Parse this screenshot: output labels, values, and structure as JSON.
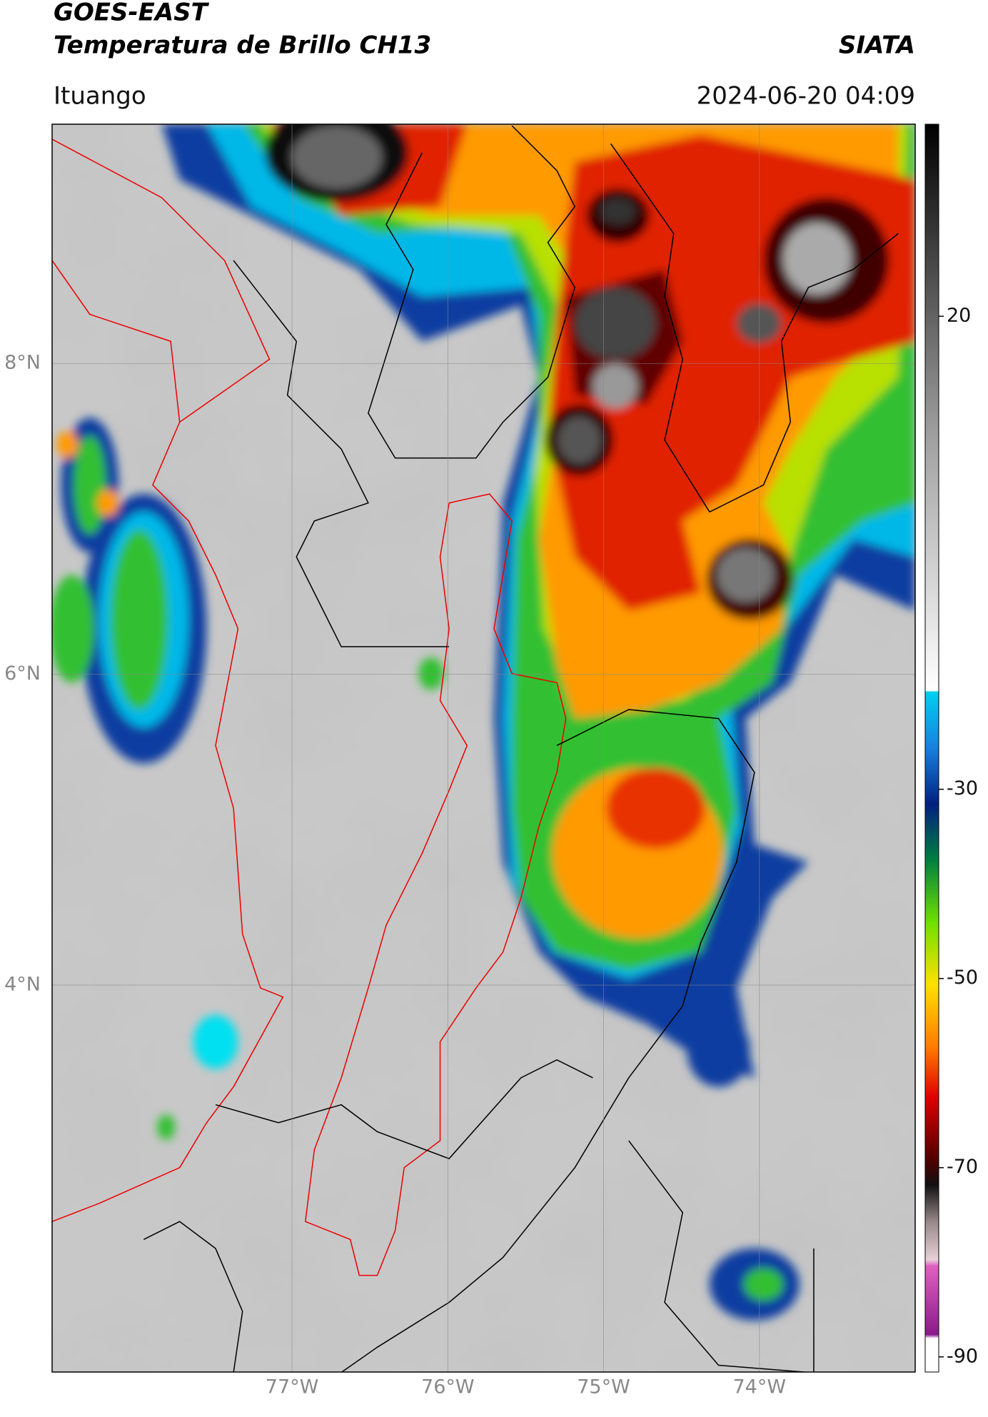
{
  "header": {
    "title": "GOES-EAST",
    "subtitle": "Temperatura de Brillo CH13",
    "source": "SIATA",
    "location": "Ituango",
    "timestamp": "2024-06-20 04:09"
  },
  "map": {
    "xlim": [
      -78.54,
      -73.0
    ],
    "ylim": [
      1.51,
      9.54
    ],
    "xticks": [
      {
        "value": -77,
        "label": "77°W"
      },
      {
        "value": -76,
        "label": "76°W"
      },
      {
        "value": -75,
        "label": "75°W"
      },
      {
        "value": -74,
        "label": "74°W"
      }
    ],
    "yticks": [
      {
        "value": 4,
        "label": "4°N"
      },
      {
        "value": 6,
        "label": "6°N"
      },
      {
        "value": 8,
        "label": "8°N"
      }
    ],
    "grid": true
  },
  "colorbar": {
    "clim": [
      -91.6,
      40.3
    ],
    "ticks": [
      -90,
      -70,
      -50,
      -30,
      20
    ]
  }
}
